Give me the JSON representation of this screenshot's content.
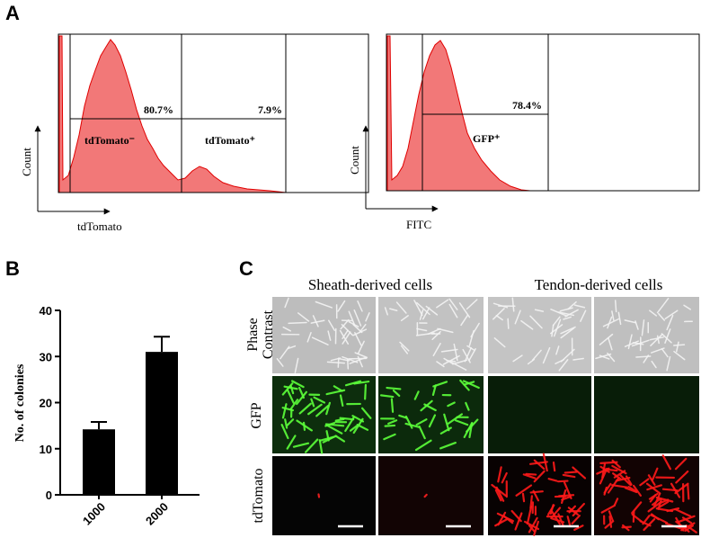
{
  "panel_labels": [
    "A",
    "B",
    "C"
  ],
  "flow": {
    "left": {
      "y_label": "Count",
      "x_label": "tdTomato",
      "gate_percents": [
        "80.7%",
        "7.9%"
      ],
      "gate_names": [
        "tdTomato⁻",
        "tdTomato⁺"
      ]
    },
    "right": {
      "y_label": "Count",
      "x_label": "FITC",
      "gate_percents": [
        "78.4%"
      ],
      "gate_names": [
        "GFP⁺"
      ]
    }
  },
  "microscopy": {
    "column_groups": [
      "Sheath-derived cells",
      "Tendon-derived cells"
    ],
    "rows": [
      "Phase Contrast",
      "GFP",
      "tdTomato"
    ]
  },
  "chart_data": {
    "type": "bar",
    "categories": [
      "1000",
      "2000"
    ],
    "values": [
      14.2,
      31
    ],
    "errors": [
      1.6,
      3.3
    ],
    "color": "#000000",
    "y_label": "No. of colonies",
    "ylim": [
      0,
      40
    ],
    "yticks": [
      0,
      10,
      20,
      30,
      40
    ],
    "grid": false
  }
}
